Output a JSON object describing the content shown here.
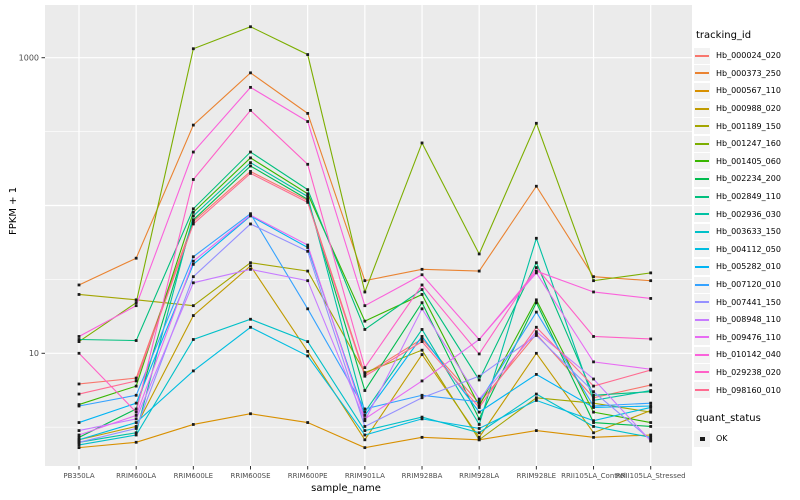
{
  "chart_data": {
    "type": "line",
    "title": "",
    "xlabel": "sample_name",
    "ylabel": "FPKM + 1",
    "y_scale": "log10",
    "y_ticks": [
      {
        "value": 10,
        "label": "10"
      },
      {
        "value": 1000,
        "label": "1000"
      }
    ],
    "y_major_grid": [
      10,
      100,
      1000
    ],
    "y_minor_grid": [
      3.162,
      31.62,
      316.2
    ],
    "grid": "on",
    "legend_position": "right",
    "panel_background": "#ebebeb",
    "grid_color": "#ffffff",
    "point_color": "#1a1a1a",
    "tick_label_color": "#4d4d4d",
    "categories": [
      "PB350LA",
      "RRIM600LA",
      "RRIM600LE",
      "RRIM600SE",
      "RRIM600PE",
      "RRIM901LA",
      "RRIM928BA",
      "RRIM928LA",
      "RRIM928LE",
      "RRII105LA_Control",
      "RRII105LA_Stressed"
    ],
    "series": [
      {
        "name": "Hb_000024_020",
        "color": "#F8766D",
        "values": [
          6.2,
          6.8,
          78,
          170,
          108,
          7.2,
          12.5,
          4.6,
          13.5,
          5.0,
          6.1
        ]
      },
      {
        "name": "Hb_000373_250",
        "color": "#EA8331",
        "values": [
          29,
          44,
          350,
          790,
          420,
          31,
          37,
          36,
          135,
          33,
          31
        ]
      },
      {
        "name": "Hb_000567_110",
        "color": "#D89000",
        "values": [
          2.3,
          2.5,
          3.3,
          3.9,
          3.4,
          2.3,
          2.7,
          2.6,
          3.0,
          2.7,
          2.8
        ]
      },
      {
        "name": "Hb_000988_020",
        "color": "#C09B00",
        "values": [
          2.6,
          3.2,
          18,
          39,
          10.3,
          2.6,
          9.8,
          2.7,
          10,
          2.9,
          4.1
        ]
      },
      {
        "name": "Hb_001189_150",
        "color": "#A3A500",
        "values": [
          25,
          23,
          21,
          41,
          36,
          7.4,
          10.5,
          2.6,
          5.0,
          4.6,
          4.0
        ]
      },
      {
        "name": "Hb_001247_160",
        "color": "#7CAE00",
        "values": [
          12,
          22,
          1150,
          1620,
          1050,
          26,
          265,
          47,
          360,
          31,
          35
        ]
      },
      {
        "name": "Hb_001405_060",
        "color": "#39B600",
        "values": [
          4.5,
          6.0,
          90,
          210,
          120,
          16.5,
          25,
          4.4,
          23,
          4.0,
          3.4
        ]
      },
      {
        "name": "Hb_002234_200",
        "color": "#00BB4E",
        "values": [
          2.7,
          4.2,
          80,
          185,
          110,
          5.6,
          22,
          3.6,
          22,
          3.4,
          3.2
        ]
      },
      {
        "name": "Hb_002849_110",
        "color": "#00BF7D",
        "values": [
          12.4,
          12.2,
          95,
          230,
          128,
          14.5,
          27,
          6.6,
          41,
          5.2,
          5.5
        ]
      },
      {
        "name": "Hb_002936_030",
        "color": "#00C1A3",
        "values": [
          2.5,
          2.9,
          85,
          195,
          115,
          4.0,
          14.5,
          3.3,
          60,
          4.8,
          5.6
        ]
      },
      {
        "name": "Hb_003633_150",
        "color": "#00C0C8",
        "values": [
          2.4,
          2.8,
          12.4,
          17,
          12,
          3.0,
          3.7,
          2.9,
          5.3,
          3.2,
          2.7
        ]
      },
      {
        "name": "Hb_004112_050",
        "color": "#00BDE0",
        "values": [
          2.6,
          3.4,
          7.6,
          15,
          9.6,
          2.8,
          3.6,
          3.1,
          4.8,
          3.5,
          4.3
        ]
      },
      {
        "name": "Hb_005282_010",
        "color": "#00B4F4",
        "values": [
          3.4,
          4.6,
          40,
          85,
          52,
          3.8,
          13,
          4.0,
          7.2,
          4.3,
          4.4
        ]
      },
      {
        "name": "Hb_007120_010",
        "color": "#35A2FF",
        "values": [
          4.4,
          5.2,
          45,
          88,
          20,
          4.2,
          5.2,
          4.7,
          19,
          4.4,
          4.6
        ]
      },
      {
        "name": "Hb_007441_150",
        "color": "#9590FF",
        "values": [
          2.5,
          3.1,
          33,
          75,
          49,
          3.2,
          5.0,
          7.0,
          13.2,
          5.5,
          2.6
        ]
      },
      {
        "name": "Hb_008948_110",
        "color": "#C77CFF",
        "values": [
          3.0,
          3.6,
          30,
          37,
          31,
          3.5,
          20,
          4.9,
          14,
          6.7,
          2.55
        ]
      },
      {
        "name": "Hb_009476_110",
        "color": "#E76BF3",
        "values": [
          2.8,
          3.8,
          42,
          86,
          54,
          3.6,
          6.5,
          12.4,
          35,
          8.75,
          7.8
        ]
      },
      {
        "name": "Hb_010142_040",
        "color": "#FA62DB",
        "values": [
          13,
          21,
          230,
          630,
          370,
          21,
          34,
          12.4,
          36,
          26,
          23.5
        ]
      },
      {
        "name": "Hb_029238_020",
        "color": "#FF61C7",
        "values": [
          10,
          4.0,
          150,
          440,
          190,
          8.0,
          29,
          9.9,
          38,
          13,
          12.5
        ]
      },
      {
        "name": "Hb_098160_010",
        "color": "#FF6C91",
        "values": [
          5.3,
          6.5,
          75,
          165,
          105,
          7.0,
          12,
          4.3,
          15,
          6.0,
          7.7
        ]
      }
    ]
  },
  "legend": {
    "tracking_title": "tracking_id",
    "quant_title": "quant_status",
    "quant_items": [
      "OK"
    ]
  }
}
